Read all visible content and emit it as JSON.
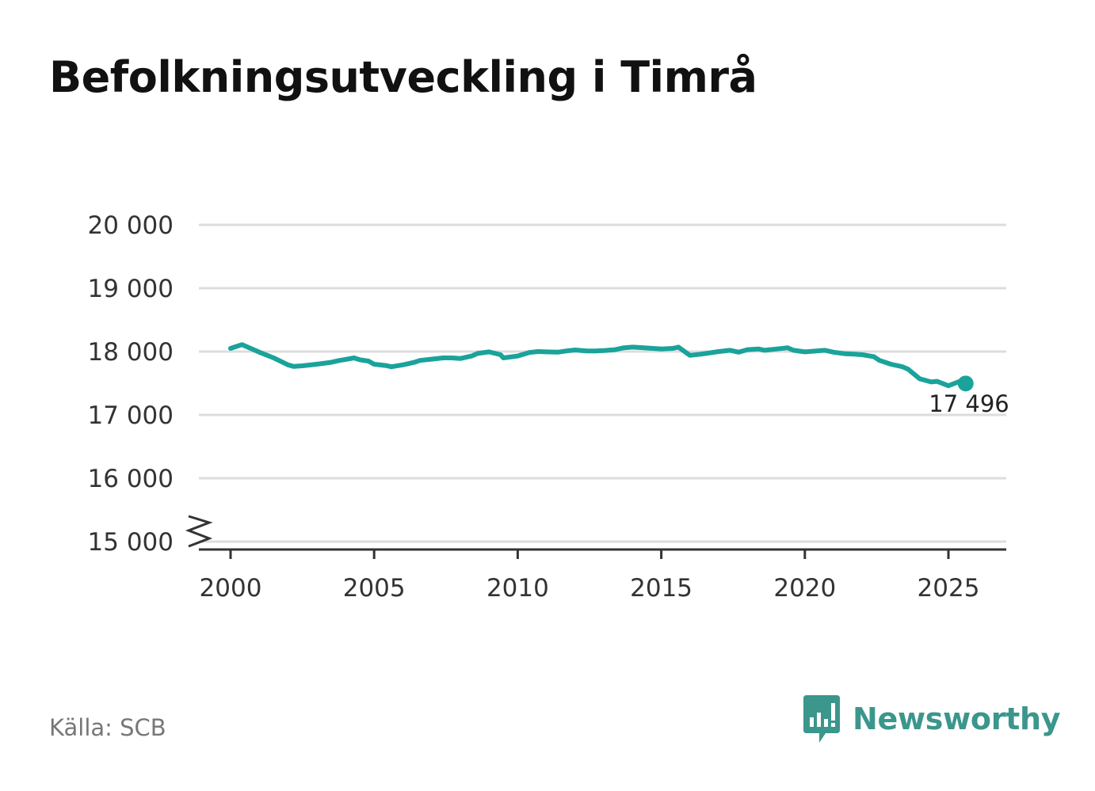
{
  "title": "Befolkningsutveckling i Timrå",
  "source": "Källa: SCB",
  "brand": "Newsworthy",
  "icon": "newsworthy-logo-icon",
  "colors": {
    "line": "#1aa39a",
    "grid": "#dddddd",
    "axis": "#333333",
    "brand": "#3b968c"
  },
  "chart_data": {
    "type": "line",
    "title": "Befolkningsutveckling i Timrå",
    "xlabel": "",
    "ylabel": "",
    "xlim": [
      1999,
      2027
    ],
    "ylim": [
      15000,
      20000
    ],
    "y_ticks": [
      15000,
      16000,
      17000,
      18000,
      19000,
      20000
    ],
    "y_tick_labels": [
      "15 000",
      "16 000",
      "17 000",
      "18 000",
      "19 000",
      "20 000"
    ],
    "x_ticks": [
      2000,
      2005,
      2010,
      2015,
      2020,
      2025
    ],
    "x_tick_labels": [
      "2000",
      "2005",
      "2010",
      "2015",
      "2020",
      "2025"
    ],
    "y_axis_break": true,
    "grid": true,
    "last_value_label": "17 496",
    "series": [
      {
        "x": [
          2000.0,
          2000.4,
          2000.7,
          2001.0,
          2001.5,
          2002.0,
          2002.2,
          2002.5,
          2003.0,
          2003.5,
          2003.8,
          2004.0,
          2004.3,
          2004.5,
          2004.8,
          2005.0,
          2005.4,
          2005.6,
          2006.0,
          2006.4,
          2006.6,
          2007.0,
          2007.4,
          2007.7,
          2008.0,
          2008.4,
          2008.6,
          2009.0,
          2009.4,
          2009.5,
          2010.0,
          2010.4,
          2010.7,
          2011.0,
          2011.4,
          2011.7,
          2012.0,
          2012.4,
          2012.7,
          2013.0,
          2013.4,
          2013.7,
          2014.0,
          2014.4,
          2014.7,
          2015.0,
          2015.4,
          2015.6,
          2016.0,
          2016.4,
          2016.7,
          2017.0,
          2017.4,
          2017.7,
          2018.0,
          2018.4,
          2018.6,
          2019.0,
          2019.4,
          2019.6,
          2020.0,
          2020.4,
          2020.7,
          2021.0,
          2021.4,
          2021.7,
          2022.0,
          2022.4,
          2022.6,
          2023.0,
          2023.4,
          2023.6,
          2024.0,
          2024.4,
          2024.6,
          2025.0,
          2025.4,
          2025.6
        ],
        "values": [
          18050,
          18110,
          18050,
          17990,
          17900,
          17790,
          17765,
          17775,
          17800,
          17830,
          17860,
          17875,
          17900,
          17870,
          17850,
          17800,
          17780,
          17760,
          17790,
          17830,
          17860,
          17880,
          17900,
          17900,
          17890,
          17930,
          17970,
          17995,
          17950,
          17900,
          17930,
          17985,
          18000,
          17995,
          17990,
          18010,
          18025,
          18010,
          18010,
          18015,
          18030,
          18060,
          18070,
          18060,
          18050,
          18040,
          18050,
          18070,
          17940,
          17960,
          17980,
          18000,
          18020,
          17990,
          18030,
          18040,
          18020,
          18040,
          18060,
          18020,
          17995,
          18010,
          18020,
          17990,
          17965,
          17960,
          17950,
          17920,
          17860,
          17800,
          17760,
          17720,
          17570,
          17520,
          17530,
          17460,
          17530,
          17496
        ]
      }
    ]
  }
}
